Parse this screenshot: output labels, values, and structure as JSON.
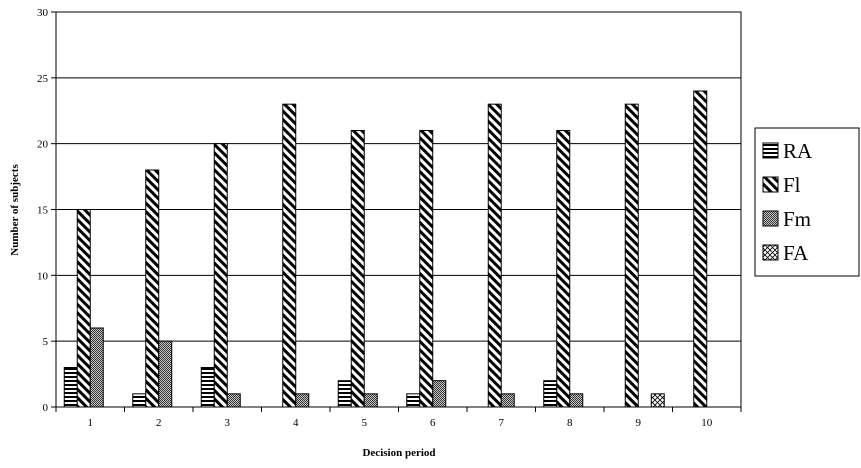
{
  "chart_data": {
    "type": "bar",
    "title": "",
    "xlabel": "Decision period",
    "ylabel": "Number of subjects",
    "categories": [
      "1",
      "2",
      "3",
      "4",
      "5",
      "6",
      "7",
      "8",
      "9",
      "10"
    ],
    "ylim": [
      0,
      30
    ],
    "yticks": [
      0,
      5,
      10,
      15,
      20,
      25,
      30
    ],
    "grid": true,
    "legend_position": "right",
    "series": [
      {
        "name": "RA",
        "pattern": "horizontal-stripes",
        "values": [
          3,
          1,
          3,
          0,
          2,
          1,
          0,
          2,
          0,
          0
        ]
      },
      {
        "name": "Fl",
        "pattern": "diagonal-stripes",
        "values": [
          15,
          18,
          20,
          23,
          21,
          21,
          23,
          21,
          23,
          24
        ]
      },
      {
        "name": "Fm",
        "pattern": "dense-checker",
        "values": [
          6,
          5,
          1,
          1,
          1,
          2,
          1,
          1,
          0,
          0
        ]
      },
      {
        "name": "FA",
        "pattern": "diagonal-cross",
        "values": [
          0,
          0,
          0,
          0,
          0,
          0,
          0,
          0,
          1,
          0
        ]
      }
    ]
  }
}
